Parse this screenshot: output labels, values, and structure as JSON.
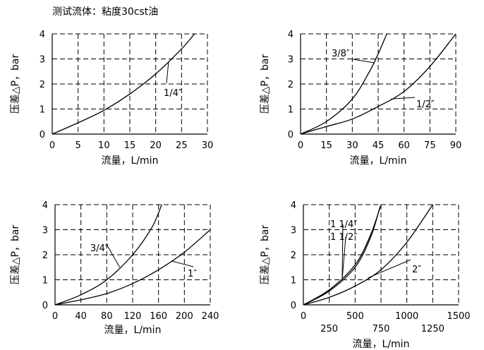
{
  "page_title": "测试流体：粘度30cst油",
  "colors": {
    "ink": "#000000",
    "background": "#ffffff"
  },
  "chart_data": [
    {
      "type": "line",
      "xlabel": "流量，L/min",
      "ylabel": "压差△P，bar",
      "xticks": [
        "0",
        "5",
        "10",
        "15",
        "20",
        "25",
        "30"
      ],
      "yticks": [
        "0",
        "1",
        "2",
        "3",
        "4"
      ],
      "xlim": [
        0,
        30
      ],
      "ylim": [
        0,
        4
      ],
      "grid": true,
      "series": [
        {
          "name": "1/4″",
          "x": [
            0,
            5,
            10,
            15,
            20,
            25,
            27.5
          ],
          "values": [
            0,
            0.45,
            0.95,
            1.6,
            2.4,
            3.4,
            4.0
          ]
        }
      ]
    },
    {
      "type": "line",
      "xlabel": "流量，L/min",
      "ylabel": "压差△P，bar",
      "xticks": [
        "0",
        "15",
        "30",
        "45",
        "60",
        "75",
        "90"
      ],
      "yticks": [
        "0",
        "1",
        "2",
        "3",
        "4"
      ],
      "xlim": [
        0,
        90
      ],
      "ylim": [
        0,
        4
      ],
      "grid": true,
      "series": [
        {
          "name": "3/8″",
          "x": [
            0,
            15,
            30,
            40,
            45,
            50
          ],
          "values": [
            0,
            0.5,
            1.4,
            2.5,
            3.2,
            4.0
          ]
        },
        {
          "name": "1/2″",
          "x": [
            0,
            15,
            30,
            45,
            60,
            75,
            90
          ],
          "values": [
            0,
            0.3,
            0.6,
            1.1,
            1.7,
            2.7,
            4.0
          ]
        }
      ]
    },
    {
      "type": "line",
      "xlabel": "流量，L/min",
      "ylabel": "压差△P，bar",
      "xticks": [
        "0",
        "40",
        "80",
        "120",
        "160",
        "200",
        "240"
      ],
      "yticks": [
        "0",
        "1",
        "2",
        "3",
        "4"
      ],
      "xlim": [
        0,
        240
      ],
      "ylim": [
        0,
        4
      ],
      "grid": true,
      "series": [
        {
          "name": "3/4″",
          "x": [
            0,
            40,
            80,
            120,
            150,
            165
          ],
          "values": [
            0,
            0.4,
            1.0,
            2.0,
            3.1,
            4.0
          ]
        },
        {
          "name": "1″",
          "x": [
            0,
            40,
            80,
            120,
            160,
            200,
            240
          ],
          "values": [
            0,
            0.2,
            0.45,
            0.85,
            1.4,
            2.1,
            3.0
          ]
        }
      ]
    },
    {
      "type": "line",
      "xlabel": "流量，L/min",
      "ylabel": "压差△P，bar",
      "xticks": [
        "0",
        "250",
        "500",
        "750",
        "1000",
        "1250",
        "1500"
      ],
      "yticks": [
        "0",
        "1",
        "2",
        "3",
        "4"
      ],
      "xlim": [
        0,
        1500
      ],
      "ylim": [
        0,
        4
      ],
      "grid": true,
      "series": [
        {
          "name": "1 1/4″",
          "x": [
            0,
            250,
            500,
            650,
            750
          ],
          "values": [
            0,
            0.6,
            1.6,
            2.8,
            4.0
          ]
        },
        {
          "name": "1 1/2″",
          "x": [
            0,
            250,
            500,
            650,
            740
          ],
          "values": [
            0,
            0.55,
            1.5,
            2.7,
            3.9
          ]
        },
        {
          "name": "2″",
          "x": [
            0,
            250,
            500,
            750,
            1000,
            1250
          ],
          "values": [
            0,
            0.3,
            0.75,
            1.4,
            2.5,
            4.0
          ]
        }
      ]
    }
  ]
}
